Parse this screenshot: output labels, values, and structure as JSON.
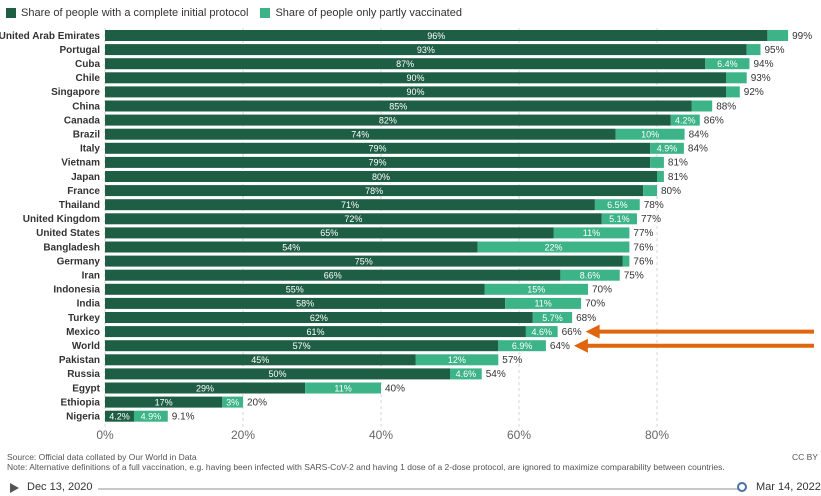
{
  "legend": {
    "complete_label": "Share of people with a complete initial protocol",
    "partial_label": "Share of people only partly vaccinated"
  },
  "colors": {
    "complete": "#1e5e45",
    "partial": "#3db388",
    "arrow": "#e0650f"
  },
  "chart_data": {
    "type": "bar",
    "orientation": "horizontal",
    "stacked": true,
    "xlim": [
      0,
      100
    ],
    "x_ticks": [
      "0%",
      "20%",
      "40%",
      "60%",
      "80%"
    ],
    "grid": true,
    "legend_position": "top-left",
    "categories": [
      "United Arab Emirates",
      "Portugal",
      "Cuba",
      "Chile",
      "Singapore",
      "China",
      "Canada",
      "Brazil",
      "Italy",
      "Vietnam",
      "Japan",
      "France",
      "Thailand",
      "United Kingdom",
      "United States",
      "Bangladesh",
      "Germany",
      "Iran",
      "Indonesia",
      "India",
      "Turkey",
      "Mexico",
      "World",
      "Pakistan",
      "Russia",
      "Egypt",
      "Ethiopia",
      "Nigeria"
    ],
    "series": [
      {
        "name": "Share of people with a complete initial protocol",
        "values": [
          96,
          93,
          87,
          90,
          90,
          85,
          82,
          74,
          79,
          79,
          80,
          78,
          71,
          72,
          65,
          54,
          75,
          66,
          55,
          58,
          62,
          61,
          57,
          45,
          50,
          29,
          17,
          4.2
        ],
        "labels": [
          "96%",
          "93%",
          "87%",
          "90%",
          "90%",
          "85%",
          "82%",
          "74%",
          "79%",
          "79%",
          "80%",
          "78%",
          "71%",
          "72%",
          "65%",
          "54%",
          "75%",
          "66%",
          "55%",
          "58%",
          "62%",
          "61%",
          "57%",
          "45%",
          "50%",
          "29%",
          "17%",
          "4.2%"
        ]
      },
      {
        "name": "Share of people only partly vaccinated",
        "values": [
          3,
          2,
          6.4,
          3,
          2,
          3,
          4.2,
          10,
          4.9,
          2,
          1,
          2,
          6.5,
          5.1,
          11,
          22,
          1,
          8.6,
          15,
          11,
          5.7,
          4.6,
          6.9,
          12,
          4.6,
          11,
          3,
          4.9
        ],
        "labels": [
          "",
          "",
          "6.4%",
          "",
          "",
          "",
          "4.2%",
          "10%",
          "4.9%",
          "",
          "",
          "",
          "6.5%",
          "5.1%",
          "11%",
          "22%",
          "",
          "8.6%",
          "15%",
          "11%",
          "5.7%",
          "4.6%",
          "6.9%",
          "12%",
          "4.6%",
          "11%",
          "3%",
          "4.9%"
        ]
      }
    ],
    "totals": [
      "99%",
      "95%",
      "94%",
      "93%",
      "92%",
      "88%",
      "86%",
      "84%",
      "84%",
      "81%",
      "81%",
      "80%",
      "78%",
      "77%",
      "77%",
      "76%",
      "76%",
      "75%",
      "70%",
      "70%",
      "68%",
      "66%",
      "64%",
      "57%",
      "54%",
      "40%",
      "20%",
      "9.1%"
    ],
    "highlighted": [
      "Mexico",
      "World"
    ]
  },
  "footer": {
    "source": "Source: Official data collated by Our World in Data",
    "note": "Note: Alternative definitions of a full vaccination, e.g. having been infected with SARS-CoV-2 and having 1 dose of a 2-dose protocol, are ignored to maximize comparability between countries.",
    "license": "CC BY"
  },
  "timeline": {
    "start_date": "Dec 13, 2020",
    "end_date": "Mar 14, 2022"
  }
}
